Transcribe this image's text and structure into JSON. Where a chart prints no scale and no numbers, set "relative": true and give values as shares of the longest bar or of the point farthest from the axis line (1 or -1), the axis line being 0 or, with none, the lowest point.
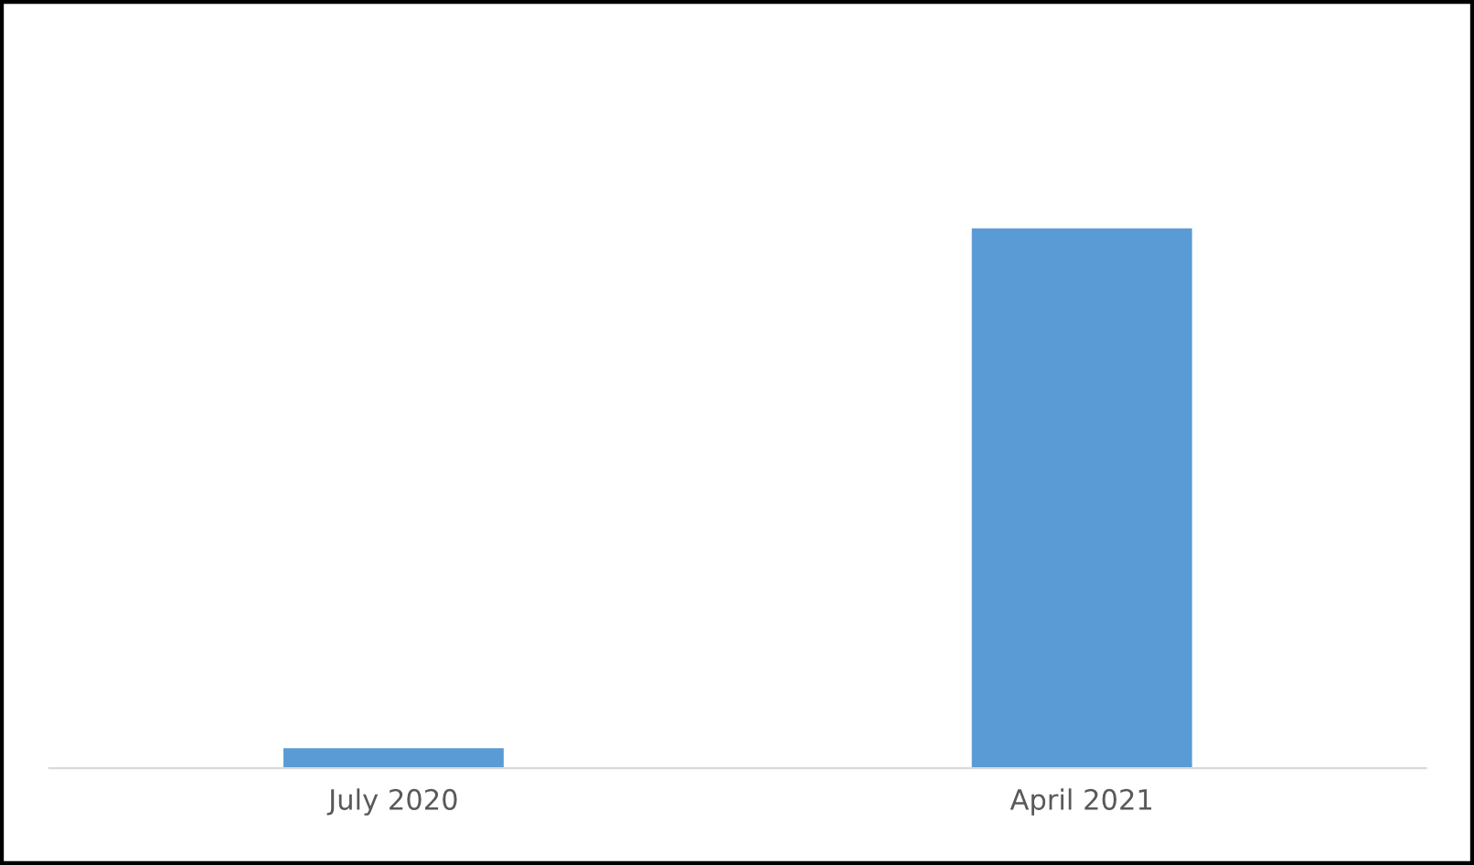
{
  "chart_data": {
    "type": "bar",
    "relative": true,
    "categories": [
      "July 2020",
      "April 2021"
    ],
    "series": [
      {
        "color": "#5b9bd5",
        "values": [
          0.037,
          1
        ]
      }
    ]
  }
}
